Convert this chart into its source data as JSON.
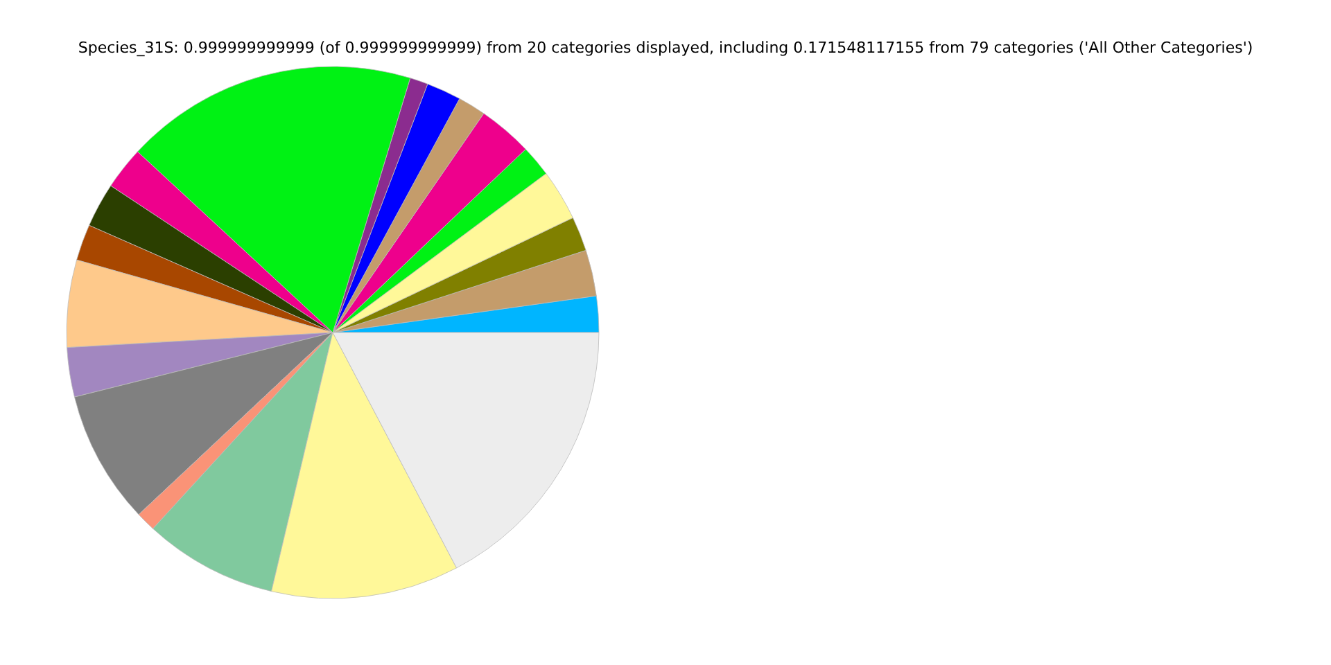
{
  "chart_data": {
    "type": "pie",
    "title": "Species_31S: 0.999999999999 (of 0.999999999999) from 20 categories displayed, including 0.171548117155 from 79 categories ('All Other Categories')",
    "categories": [
      null,
      null,
      null,
      null,
      null,
      null,
      null,
      null,
      null,
      null,
      null,
      null,
      null,
      null,
      null,
      null,
      null,
      null,
      null,
      null
    ],
    "values": [
      2.2,
      2.8,
      2.1,
      3.1,
      1.9,
      3.3,
      1.7,
      2.1,
      1.1,
      17.8,
      2.6,
      2.7,
      2.2,
      5.3,
      3.0,
      8.1,
      1.2,
      8.1,
      11.4,
      17.3
    ],
    "colors": [
      "#00b5ff",
      "#c49c6b",
      "#808000",
      "#fff899",
      "#00f214",
      "#ee008c",
      "#c49c6b",
      "#0000ff",
      "#8b2c8f",
      "#00f214",
      "#ee008c",
      "#2b3f00",
      "#a84700",
      "#fec98b",
      "#a287c0",
      "#808080",
      "#fa9377",
      "#80c99e",
      "#fff899",
      "#ededed"
    ],
    "legend": false
  }
}
